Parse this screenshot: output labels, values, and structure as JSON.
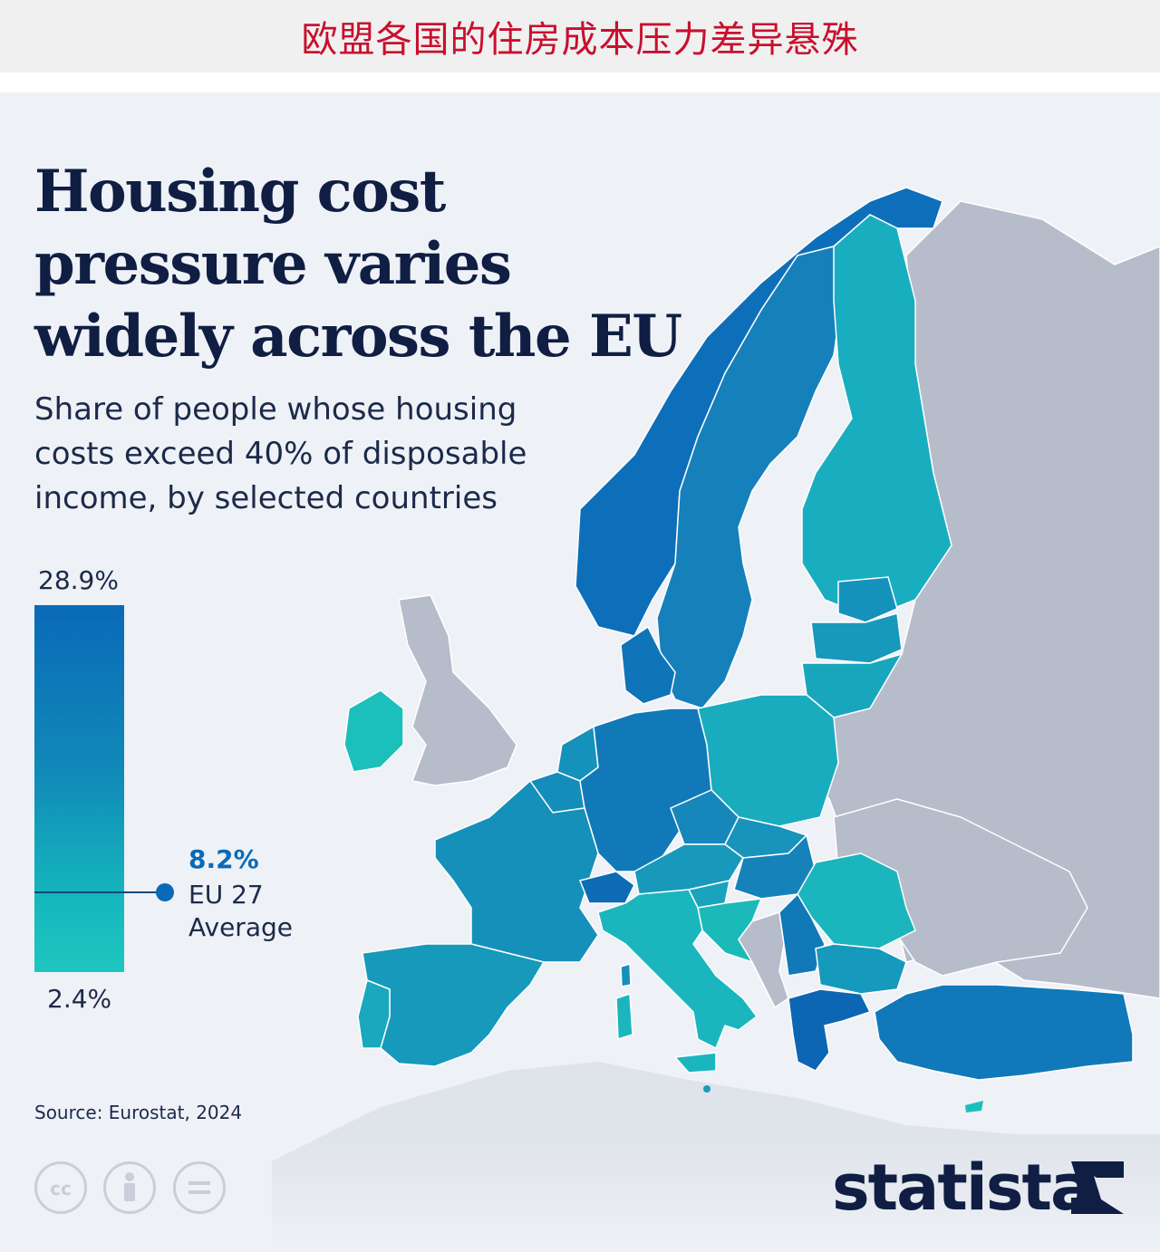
{
  "banner": {
    "title": "欧盟各国的住房成本压力差异悬殊"
  },
  "infographic": {
    "title": "Housing cost pressure varies widely across the EU",
    "subtitle": "Share of people whose housing costs exceed 40% of disposable income, by selected countries",
    "source": "Source: Eurostat, 2024",
    "brand": "statista"
  },
  "legend": {
    "max_label": "28.9%",
    "min_label": "2.4%",
    "max_value": 28.9,
    "min_value": 2.4,
    "average": {
      "value_label": "8.2%",
      "value": 8.2,
      "label": "EU 27 Average"
    },
    "colors": {
      "high": "#0a6ab8",
      "mid": "#1189b8",
      "low": "#1ec6c0"
    }
  },
  "map": {
    "legend_scale": "color gradient from 2.4% (teal) to 28.9% (blue)",
    "non_data_color": "#b7bccb",
    "sea_color": "#eef1f6",
    "countries": [
      {
        "name": "Norway",
        "color": "#0d6fba"
      },
      {
        "name": "Sweden",
        "color": "#1680bb"
      },
      {
        "name": "Finland",
        "color": "#18aebf"
      },
      {
        "name": "Estonia",
        "color": "#1592bb"
      },
      {
        "name": "Latvia",
        "color": "#1799bc"
      },
      {
        "name": "Lithuania",
        "color": "#18a6bd"
      },
      {
        "name": "Denmark",
        "color": "#0f74b8"
      },
      {
        "name": "Ireland",
        "color": "#1bc0bd"
      },
      {
        "name": "United Kingdom",
        "color": "#b7bccb"
      },
      {
        "name": "Netherlands",
        "color": "#1592bb"
      },
      {
        "name": "Belgium",
        "color": "#158dba"
      },
      {
        "name": "Luxembourg",
        "color": "#1a9abb"
      },
      {
        "name": "Germany",
        "color": "#1279b8"
      },
      {
        "name": "Poland",
        "color": "#19acbe"
      },
      {
        "name": "France",
        "color": "#1590ba"
      },
      {
        "name": "Switzerland",
        "color": "#0d6cb5"
      },
      {
        "name": "Czechia",
        "color": "#1687ba"
      },
      {
        "name": "Slovakia",
        "color": "#1893bb"
      },
      {
        "name": "Austria",
        "color": "#1899bc"
      },
      {
        "name": "Hungary",
        "color": "#1583b9"
      },
      {
        "name": "Slovenia",
        "color": "#19a3bd"
      },
      {
        "name": "Croatia",
        "color": "#1bbab9"
      },
      {
        "name": "Italy",
        "color": "#1bb6bd"
      },
      {
        "name": "Spain",
        "color": "#1799bc"
      },
      {
        "name": "Portugal",
        "color": "#19a8bd"
      },
      {
        "name": "Romania",
        "color": "#1bb5bd"
      },
      {
        "name": "Serbia",
        "color": "#1179b7"
      },
      {
        "name": "Bulgaria",
        "color": "#1599bc"
      },
      {
        "name": "Greece",
        "color": "#0d66b3"
      },
      {
        "name": "Turkey",
        "color": "#1179b9"
      },
      {
        "name": "Cyprus",
        "color": "#1bc0bd"
      },
      {
        "name": "Malta",
        "color": "#1a9cbc"
      }
    ]
  },
  "license_icons": [
    "cc-icon",
    "attribution-icon",
    "no-derivatives-icon"
  ]
}
